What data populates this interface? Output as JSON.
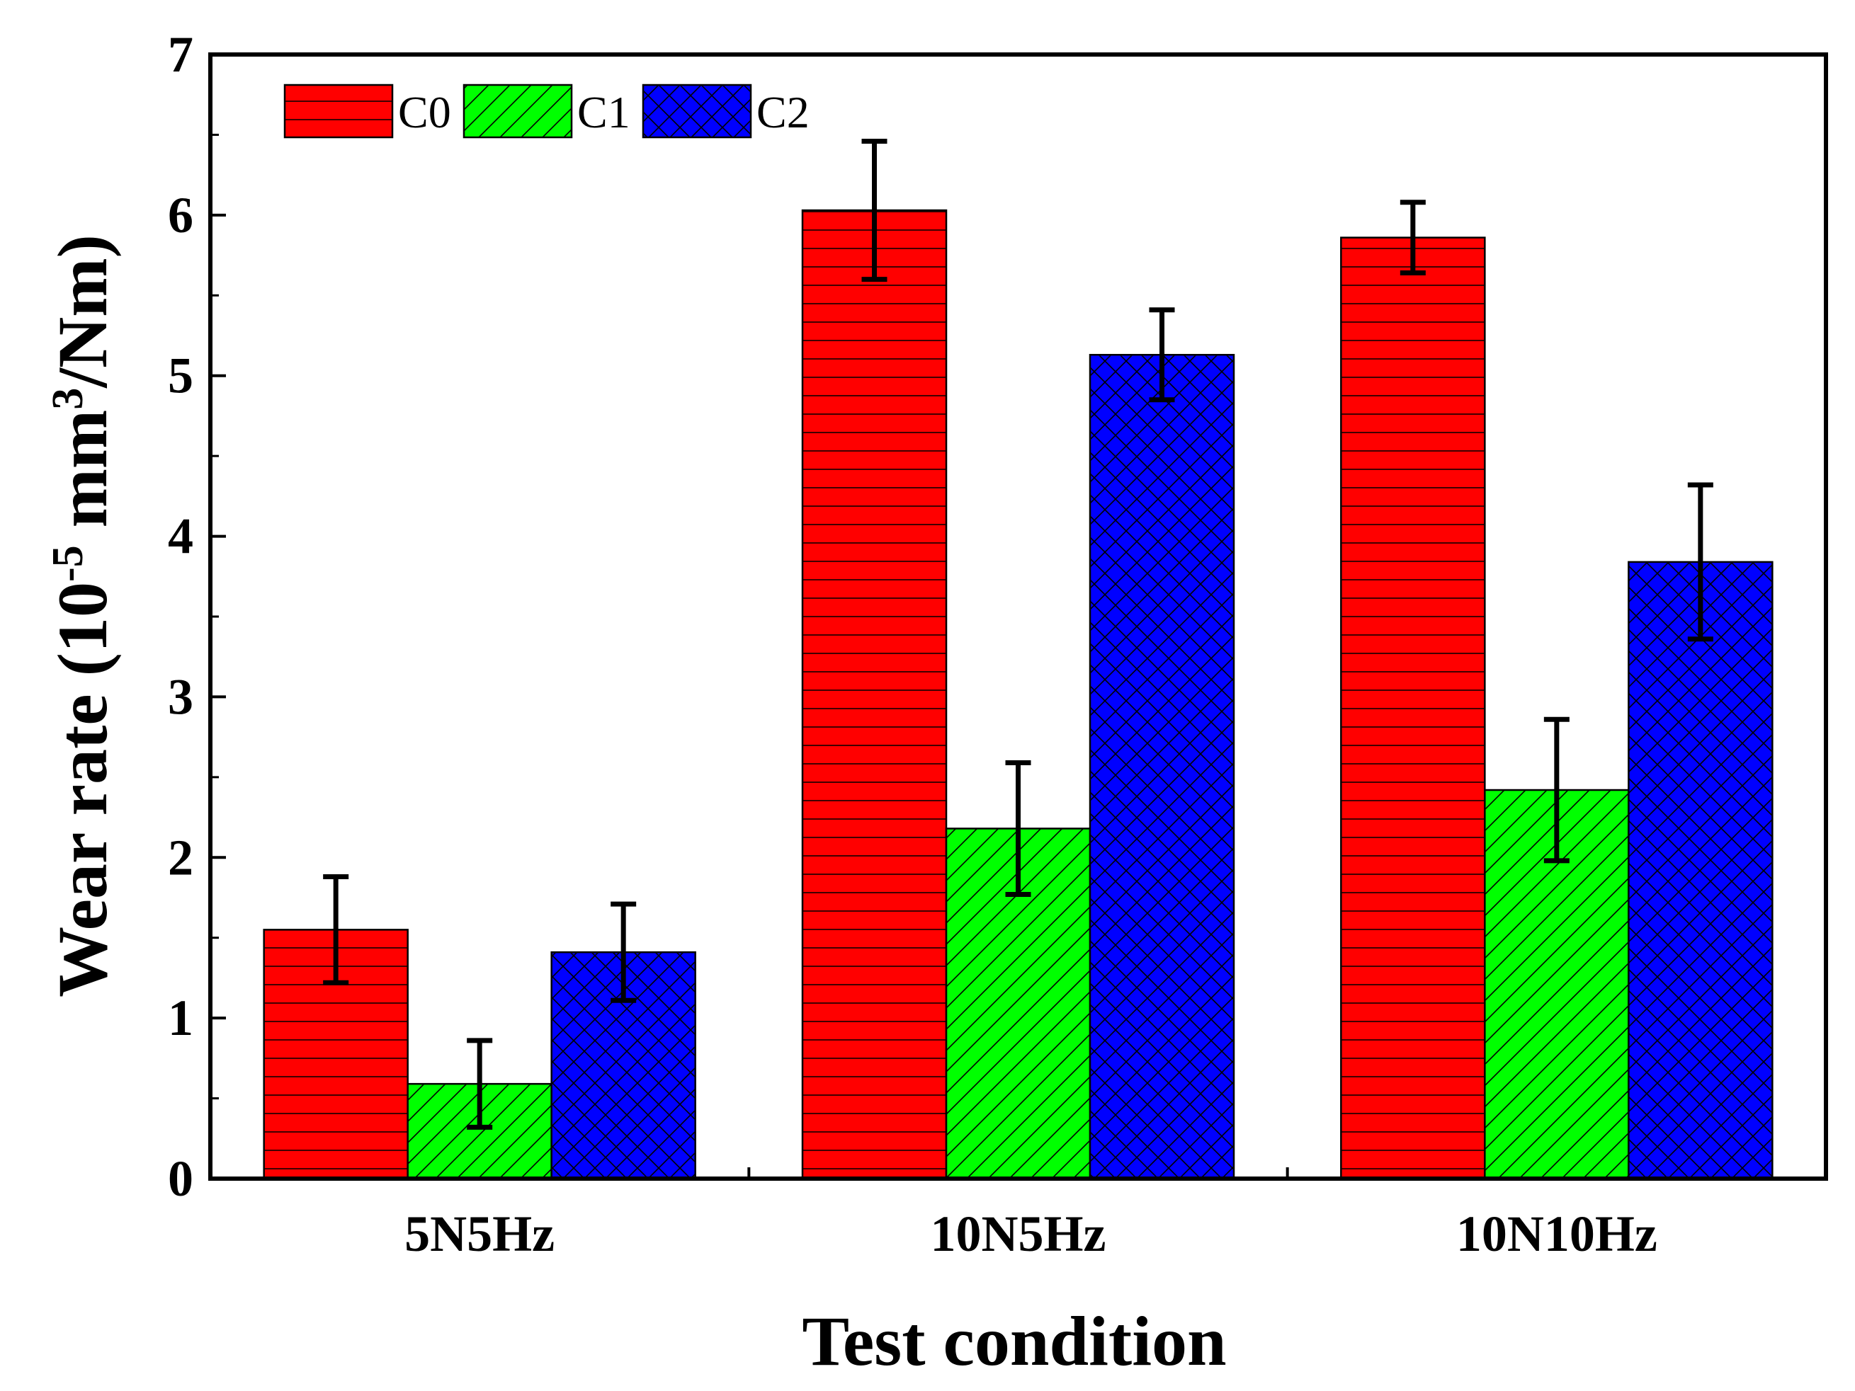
{
  "chart_data": {
    "type": "bar",
    "title": "",
    "xlabel": "Test condition",
    "ylabel": {
      "prefix": "Wear rate (10",
      "exp1": "-5",
      "middle": " mm",
      "exp2": "3",
      "suffix": "/Nm)"
    },
    "categories": [
      "5N5Hz",
      "10N5Hz",
      "10N10Hz"
    ],
    "ylim": [
      0,
      7
    ],
    "yticks": [
      "0",
      "1",
      "2",
      "3",
      "4",
      "5",
      "6",
      "7"
    ],
    "grid": false,
    "legend_position": "top-left",
    "series": [
      {
        "name": "C0",
        "color": "#ff0000",
        "pattern": "horizontal-lines",
        "values": [
          1.55,
          6.03,
          5.86
        ],
        "errors": [
          0.33,
          0.43,
          0.22
        ]
      },
      {
        "name": "C1",
        "color": "#00ff00",
        "pattern": "diagonal-lines",
        "values": [
          0.59,
          2.18,
          2.42
        ],
        "errors": [
          0.27,
          0.41,
          0.44
        ]
      },
      {
        "name": "C2",
        "color": "#0000ff",
        "pattern": "crosshatch",
        "values": [
          1.41,
          5.13,
          3.84
        ],
        "errors": [
          0.3,
          0.28,
          0.48
        ]
      }
    ]
  }
}
